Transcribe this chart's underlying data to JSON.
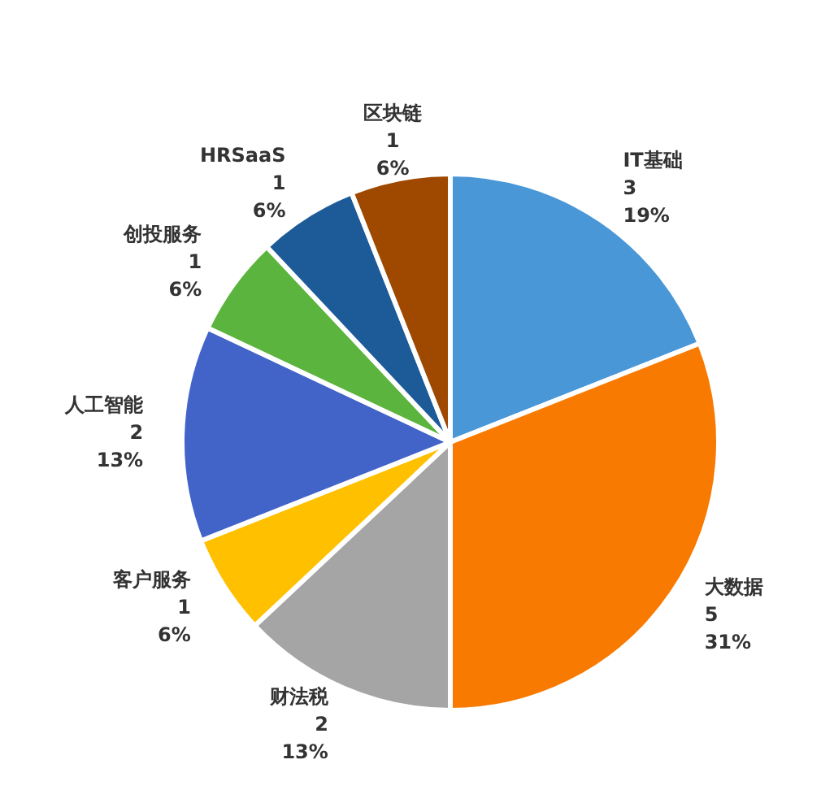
{
  "chart_data": {
    "type": "pie",
    "categories": [
      "IT基础",
      "大数据",
      "财法税",
      "客户服务",
      "人工智能",
      "创投服务",
      "HRSaaS",
      "区块链"
    ],
    "values": [
      19,
      31,
      13,
      6,
      13,
      6,
      6,
      6
    ],
    "colors": [
      "#4a97d8",
      "#f97a00",
      "#a5a5a5",
      "#ffc000",
      "#4264c8",
      "#5bb43d",
      "#1d5b98",
      "#9e4800"
    ],
    "value_labels": [
      "3\n19%",
      "5\n31%",
      "2\n13%",
      "1\n6%",
      "2\n13%",
      "1\n6%",
      "1\n6%",
      "1\n6%"
    ]
  }
}
